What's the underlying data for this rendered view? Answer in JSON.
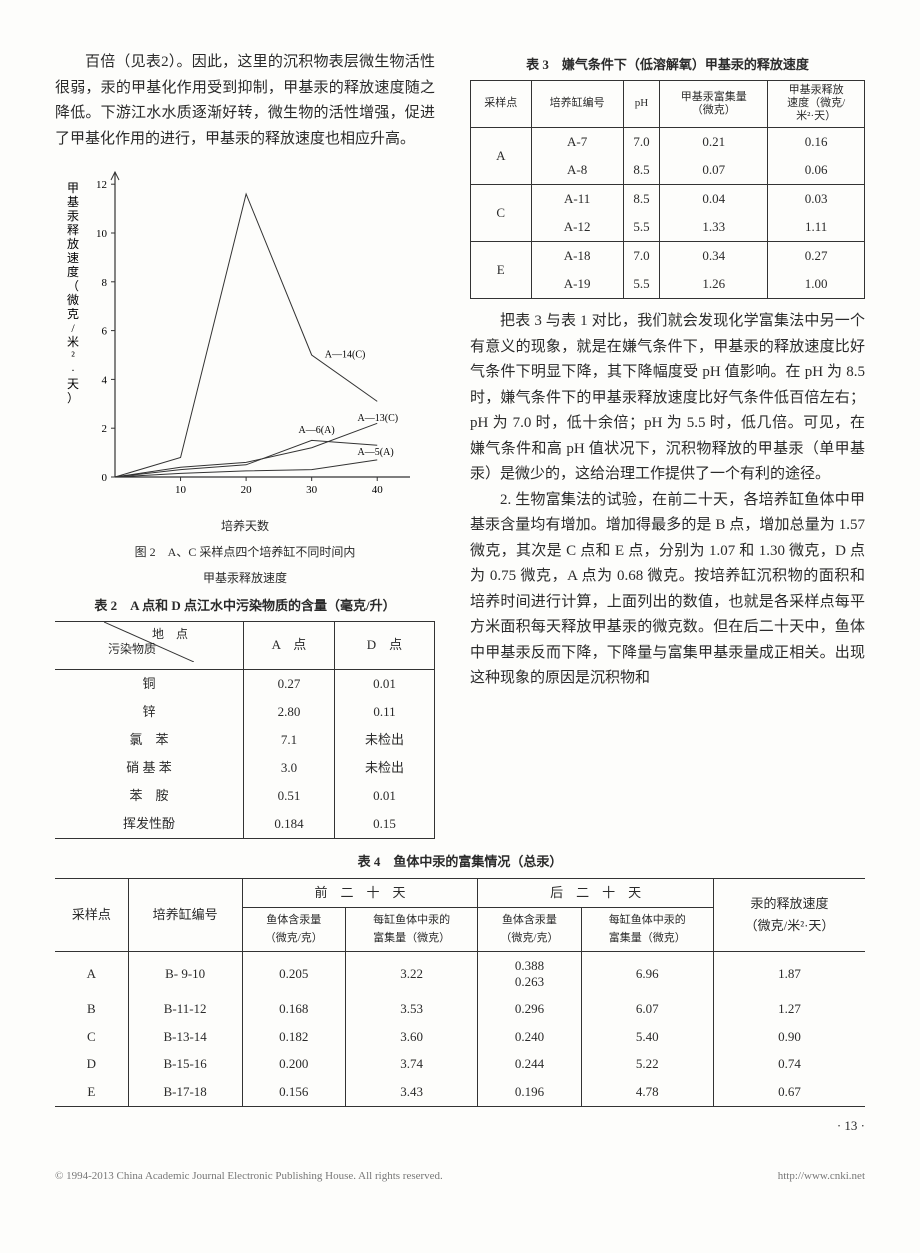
{
  "paragraphs": {
    "p1": "百倍（见表2）。因此，这里的沉积物表层微生物活性很弱，汞的甲基化作用受到抑制，甲基汞的释放速度随之降低。下游江水水质逐渐好转，微生物的活性增强，促进了甲基化作用的进行，甲基汞的释放速度也相应升高。",
    "p2": "把表 3 与表 1 对比，我们就会发现化学富集法中另一个有意义的现象，就是在嫌气条件下，甲基汞的释放速度比好气条件下明显下降，其下降幅度受 pH 值影响。在 pH 为 8.5 时，嫌气条件下的甲基汞释放速度比好气条件低百倍左右；pH 为 7.0 时，低十余倍；pH 为 5.5 时，低几倍。可见，在嫌气条件和高 pH 值状况下，沉积物释放的甲基汞（单甲基汞）是微少的，这给治理工作提供了一个有利的途径。",
    "p3": "2. 生物富集法的试验，在前二十天，各培养缸鱼体中甲基汞含量均有增加。增加得最多的是 B 点，增加总量为 1.57 微克，其次是 C 点和 E 点，分别为 1.07 和 1.30 微克，D 点为 0.75 微克，A 点为 0.68 微克。按培养缸沉积物的面积和培养时间进行计算，上面列出的数值，也就是各采样点每平方米面积每天释放甲基汞的微克数。但在后二十天中，鱼体中甲基汞反而下降，下降量与富集甲基汞量成正相关。出现这种现象的原因是沉积物和"
  },
  "figure2": {
    "caption_line1": "图 2　A、C 采样点四个培养缸不同时间内",
    "caption_line2": "甲基汞释放速度",
    "xlabel": "培养天数",
    "ylabel": "甲基汞释放速度（微克/米²·天）",
    "xlim": [
      0,
      45
    ],
    "ylim": [
      0,
      12.5
    ],
    "xticks": [
      10,
      20,
      30,
      40
    ],
    "yticks": [
      0,
      2,
      4,
      6,
      8,
      10,
      12
    ],
    "series": {
      "A14C": {
        "label": "A—14(C)",
        "pts": [
          [
            0,
            0
          ],
          [
            10,
            0.8
          ],
          [
            20,
            11.6
          ],
          [
            30,
            5.0
          ],
          [
            40,
            3.1
          ]
        ],
        "lx": 32,
        "ly": 4.9
      },
      "A13C": {
        "label": "A—13(C)",
        "pts": [
          [
            0,
            0
          ],
          [
            10,
            0.4
          ],
          [
            20,
            0.6
          ],
          [
            30,
            1.2
          ],
          [
            40,
            2.2
          ]
        ],
        "lx": 37,
        "ly": 2.3
      },
      "A6A": {
        "label": "A—6(A)",
        "pts": [
          [
            0,
            0
          ],
          [
            10,
            0.3
          ],
          [
            20,
            0.5
          ],
          [
            30,
            1.5
          ],
          [
            40,
            1.3
          ]
        ],
        "lx": 28,
        "ly": 1.8
      },
      "A5A": {
        "label": "A—5(A)",
        "pts": [
          [
            0,
            0
          ],
          [
            10,
            0.15
          ],
          [
            20,
            0.25
          ],
          [
            30,
            0.3
          ],
          [
            40,
            0.7
          ]
        ],
        "lx": 37,
        "ly": 0.9
      }
    },
    "stroke": "#333333",
    "label_fontsize": 10,
    "axis_fontsize": 11
  },
  "table2": {
    "title": "表 2　A 点和 D 点江水中污染物质的含量（毫克/升）",
    "diag_top": "地　点",
    "diag_bottom": "污染物质",
    "cols": [
      "A　点",
      "D　点"
    ],
    "rows": [
      [
        "铜",
        "0.27",
        "0.01"
      ],
      [
        "锌",
        "2.80",
        "0.11"
      ],
      [
        "氯　苯",
        "7.1",
        "未检出"
      ],
      [
        "硝 基 苯",
        "3.0",
        "未检出"
      ],
      [
        "苯　胺",
        "0.51",
        "0.01"
      ],
      [
        "挥发性酚",
        "0.184",
        "0.15"
      ]
    ]
  },
  "table3": {
    "title": "表 3　嫌气条件下（低溶解氧）甲基汞的释放速度",
    "headers": [
      "采样点",
      "培养缸编号",
      "pH",
      "甲基汞富集量\n（微克）",
      "甲基汞释放\n速度（微克/\n米²·天）"
    ],
    "groups": [
      {
        "pt": "A",
        "rows": [
          [
            "A-7",
            "7.0",
            "0.21",
            "0.16"
          ],
          [
            "A-8",
            "8.5",
            "0.07",
            "0.06"
          ]
        ]
      },
      {
        "pt": "C",
        "rows": [
          [
            "A-11",
            "8.5",
            "0.04",
            "0.03"
          ],
          [
            "A-12",
            "5.5",
            "1.33",
            "1.11"
          ]
        ]
      },
      {
        "pt": "E",
        "rows": [
          [
            "A-18",
            "7.0",
            "0.34",
            "0.27"
          ],
          [
            "A-19",
            "5.5",
            "1.26",
            "1.00"
          ]
        ]
      }
    ]
  },
  "table4": {
    "title": "表 4　鱼体中汞的富集情况（总汞）",
    "headers": {
      "h_point": "采样点",
      "h_tank": "培养缸编号",
      "h_first": "前　二　十　天",
      "h_last": "后　二　十　天",
      "h_rate": "汞的释放速度\n（微克/米²·天）",
      "sub_conc": "鱼体含汞量\n（微克/克）",
      "sub_acc": "每缸鱼体中汞的\n富集量（微克）"
    },
    "rows": [
      [
        "A",
        "B- 9-10",
        "0.205",
        "3.22",
        "0.388\n0.263",
        "6.96",
        "1.87"
      ],
      [
        "B",
        "B-11-12",
        "0.168",
        "3.53",
        "0.296",
        "6.07",
        "1.27"
      ],
      [
        "C",
        "B-13-14",
        "0.182",
        "3.60",
        "0.240",
        "5.40",
        "0.90"
      ],
      [
        "D",
        "B-15-16",
        "0.200",
        "3.74",
        "0.244",
        "5.22",
        "0.74"
      ],
      [
        "E",
        "B-17-18",
        "0.156",
        "3.43",
        "0.196",
        "4.78",
        "0.67"
      ]
    ]
  },
  "pagenum": "· 13 ·",
  "footer_left": "© 1994-2013 China Academic Journal Electronic Publishing House. All rights reserved.",
  "footer_right": "http://www.cnki.net"
}
